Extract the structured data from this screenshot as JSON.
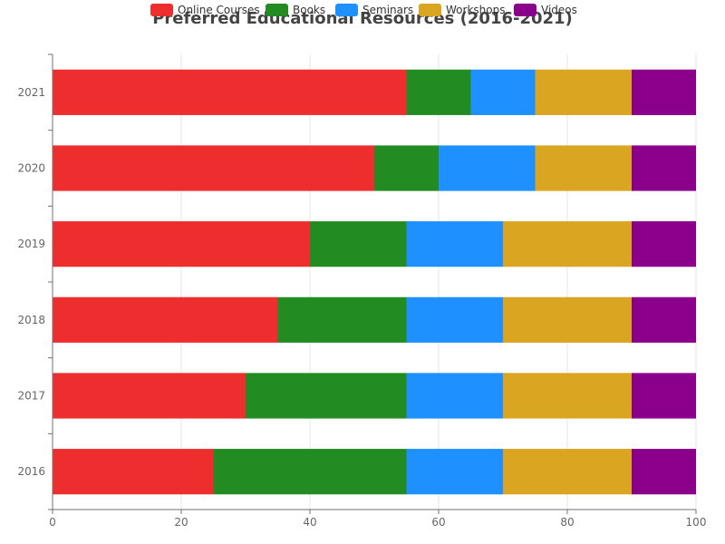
{
  "chart_data": {
    "type": "bar",
    "orientation": "horizontal",
    "stacked": true,
    "title": "Preferred Educational Resources (2016-2021)",
    "categories": [
      "2016",
      "2017",
      "2018",
      "2019",
      "2020",
      "2021"
    ],
    "series": [
      {
        "name": "Online Courses",
        "color": "#ee2e2e",
        "values": [
          25,
          30,
          35,
          40,
          50,
          55
        ]
      },
      {
        "name": "Books",
        "color": "#228b22",
        "values": [
          30,
          25,
          20,
          15,
          10,
          10
        ]
      },
      {
        "name": "Seminars",
        "color": "#1e90ff",
        "values": [
          15,
          15,
          15,
          15,
          15,
          10
        ]
      },
      {
        "name": "Workshops",
        "color": "#daa520",
        "values": [
          20,
          20,
          20,
          20,
          15,
          15
        ]
      },
      {
        "name": "Videos",
        "color": "#8b008b",
        "values": [
          10,
          10,
          10,
          10,
          10,
          10
        ]
      }
    ],
    "xlim": [
      0,
      100
    ],
    "xticks": [
      "0",
      "20",
      "40",
      "60",
      "80",
      "100"
    ],
    "grid": true,
    "legend_position": "top"
  }
}
